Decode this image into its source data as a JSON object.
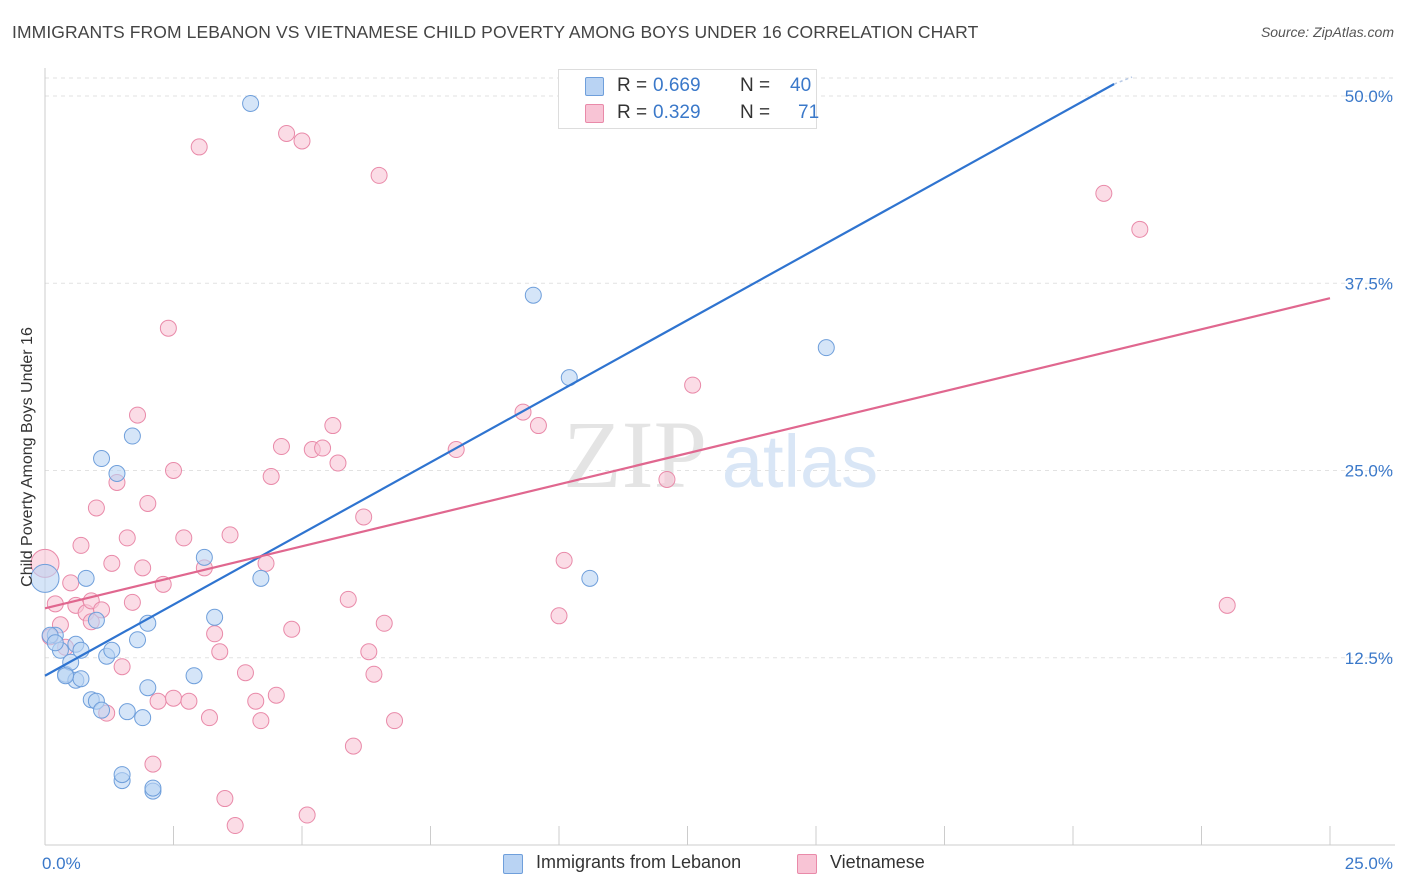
{
  "header": {
    "title": "IMMIGRANTS FROM LEBANON VS VIETNAMESE CHILD POVERTY AMONG BOYS UNDER 16 CORRELATION CHART",
    "source": "Source: ZipAtlas.com"
  },
  "legend_top": {
    "series1": {
      "r_label": "R =",
      "r_value": "0.669",
      "n_label": "N =",
      "n_value": "40"
    },
    "series2": {
      "r_label": "R =",
      "r_value": "0.329",
      "n_label": "N =",
      "n_value": "71"
    }
  },
  "legend_bottom": {
    "series1": "Immigrants from Lebanon",
    "series2": "Vietnamese"
  },
  "watermark": {
    "zip": "ZIP",
    "atlas": "atlas"
  },
  "colors": {
    "blue_fill": "#b9d3f3",
    "blue_stroke": "#6f9fdb",
    "blue_line": "#2f74d0",
    "pink_fill": "#f8c4d5",
    "pink_stroke": "#e98aa9",
    "pink_line": "#e0678f",
    "tick_label": "#3a78c9",
    "grid": "#e2e2e2"
  },
  "chart_data": {
    "type": "scatter",
    "title": "IMMIGRANTS FROM LEBANON VS VIETNAMESE CHILD POVERTY AMONG BOYS UNDER 16 CORRELATION CHART",
    "xlabel": "",
    "ylabel": "Child Poverty Among Boys Under 16",
    "xlim": [
      0,
      25
    ],
    "ylim": [
      0,
      50
    ],
    "x_tick_labels": [
      {
        "value": 0,
        "label": "0.0%"
      },
      {
        "value": 25,
        "label": "25.0%"
      }
    ],
    "y_tick_labels": [
      {
        "value": 12.5,
        "label": "12.5%"
      },
      {
        "value": 25,
        "label": "25.0%"
      },
      {
        "value": 37.5,
        "label": "37.5%"
      },
      {
        "value": 50,
        "label": "50.0%"
      }
    ],
    "series": [
      {
        "name": "Immigrants from Lebanon",
        "color": "blue",
        "trend": {
          "x0": 0,
          "y0": 11.3,
          "x1": 20.8,
          "y1": 50.8
        },
        "points": [
          [
            0.0,
            17.8
          ],
          [
            0.2,
            14.0
          ],
          [
            0.3,
            13.0
          ],
          [
            0.4,
            11.4
          ],
          [
            0.5,
            12.2
          ],
          [
            0.6,
            11.0
          ],
          [
            0.6,
            13.4
          ],
          [
            0.7,
            11.1
          ],
          [
            0.7,
            13.0
          ],
          [
            0.8,
            17.8
          ],
          [
            0.9,
            9.7
          ],
          [
            1.0,
            15.0
          ],
          [
            1.0,
            9.6
          ],
          [
            1.1,
            9.0
          ],
          [
            1.1,
            25.8
          ],
          [
            1.2,
            12.6
          ],
          [
            1.3,
            13.0
          ],
          [
            1.4,
            24.8
          ],
          [
            1.5,
            4.3
          ],
          [
            1.5,
            4.7
          ],
          [
            1.7,
            27.3
          ],
          [
            1.8,
            13.7
          ],
          [
            1.9,
            8.5
          ],
          [
            2.0,
            14.8
          ],
          [
            2.0,
            10.5
          ],
          [
            2.1,
            3.6
          ],
          [
            2.1,
            3.8
          ],
          [
            2.9,
            11.3
          ],
          [
            3.1,
            19.2
          ],
          [
            3.3,
            15.2
          ],
          [
            4.0,
            49.5
          ],
          [
            4.2,
            17.8
          ],
          [
            9.5,
            36.7
          ],
          [
            10.2,
            31.2
          ],
          [
            10.6,
            17.8
          ],
          [
            15.2,
            33.2
          ],
          [
            0.1,
            14.0
          ],
          [
            0.4,
            11.3
          ],
          [
            1.6,
            8.9
          ],
          [
            0.2,
            13.5
          ]
        ]
      },
      {
        "name": "Vietnamese",
        "color": "pink",
        "trend": {
          "x0": 0,
          "y0": 15.8,
          "x1": 25,
          "y1": 36.5
        },
        "points": [
          [
            0.0,
            18.8
          ],
          [
            0.2,
            16.1
          ],
          [
            0.3,
            14.7
          ],
          [
            0.4,
            13.2
          ],
          [
            0.5,
            17.5
          ],
          [
            0.6,
            16.0
          ],
          [
            0.7,
            20.0
          ],
          [
            0.8,
            15.5
          ],
          [
            0.9,
            14.9
          ],
          [
            0.9,
            16.3
          ],
          [
            1.0,
            22.5
          ],
          [
            1.1,
            15.7
          ],
          [
            1.2,
            8.8
          ],
          [
            1.3,
            18.8
          ],
          [
            1.4,
            24.2
          ],
          [
            1.5,
            11.9
          ],
          [
            1.6,
            20.5
          ],
          [
            1.7,
            16.2
          ],
          [
            1.8,
            28.7
          ],
          [
            1.9,
            18.5
          ],
          [
            2.0,
            22.8
          ],
          [
            2.1,
            5.4
          ],
          [
            2.2,
            9.6
          ],
          [
            2.3,
            17.4
          ],
          [
            2.4,
            34.5
          ],
          [
            2.5,
            9.8
          ],
          [
            2.5,
            25.0
          ],
          [
            2.7,
            20.5
          ],
          [
            2.8,
            9.6
          ],
          [
            3.0,
            46.6
          ],
          [
            3.1,
            18.5
          ],
          [
            3.2,
            8.5
          ],
          [
            3.3,
            14.1
          ],
          [
            3.4,
            12.9
          ],
          [
            3.5,
            3.1
          ],
          [
            3.6,
            20.7
          ],
          [
            3.7,
            1.3
          ],
          [
            3.9,
            11.5
          ],
          [
            4.1,
            9.6
          ],
          [
            4.2,
            8.3
          ],
          [
            4.3,
            18.8
          ],
          [
            4.4,
            24.6
          ],
          [
            4.5,
            10.0
          ],
          [
            4.6,
            26.6
          ],
          [
            4.7,
            47.5
          ],
          [
            4.8,
            14.4
          ],
          [
            5.0,
            47.0
          ],
          [
            5.1,
            2.0
          ],
          [
            5.2,
            26.4
          ],
          [
            5.4,
            26.5
          ],
          [
            5.6,
            28.0
          ],
          [
            5.7,
            25.5
          ],
          [
            5.9,
            16.4
          ],
          [
            6.0,
            6.6
          ],
          [
            6.2,
            21.9
          ],
          [
            6.3,
            12.9
          ],
          [
            6.4,
            11.4
          ],
          [
            6.5,
            44.7
          ],
          [
            6.6,
            14.8
          ],
          [
            6.8,
            8.3
          ],
          [
            8.0,
            26.4
          ],
          [
            9.3,
            28.9
          ],
          [
            9.6,
            28.0
          ],
          [
            10.0,
            15.3
          ],
          [
            10.1,
            19.0
          ],
          [
            12.1,
            24.4
          ],
          [
            12.6,
            30.7
          ],
          [
            20.6,
            43.5
          ],
          [
            21.3,
            41.1
          ],
          [
            23.0,
            16.0
          ],
          [
            0.1,
            13.9
          ]
        ]
      }
    ]
  }
}
